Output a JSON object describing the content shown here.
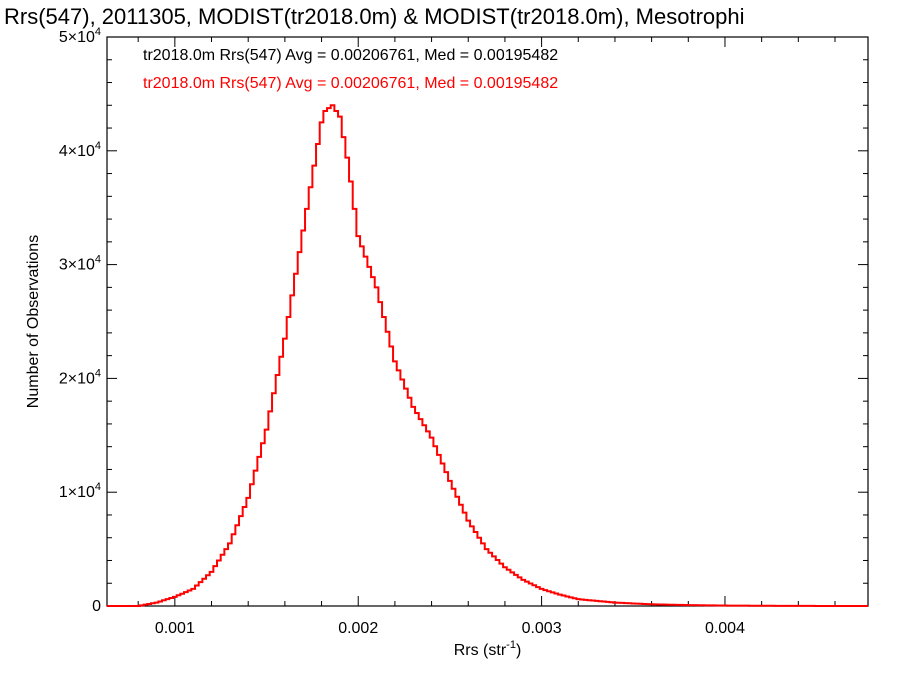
{
  "chart_data": {
    "type": "histogram",
    "title": "Rrs(547), 2011305, MODIST(tr2018.0m) & MODIST(tr2018.0m), Mesotrophi",
    "xlabel": {
      "base": "Rrs (str",
      "sup": "-1",
      "tail": ")"
    },
    "ylabel": "Number of Observations",
    "xlim": [
      0.00063,
      0.00478
    ],
    "ylim": [
      0,
      50000
    ],
    "x_ticks": [
      {
        "value": 0.001,
        "label": "0.001"
      },
      {
        "value": 0.002,
        "label": "0.002"
      },
      {
        "value": 0.003,
        "label": "0.003"
      },
      {
        "value": 0.004,
        "label": "0.004"
      }
    ],
    "y_ticks": [
      {
        "value": 0,
        "base": "0",
        "sup": ""
      },
      {
        "value": 10000,
        "base": "1×10",
        "sup": "4"
      },
      {
        "value": 20000,
        "base": "2×10",
        "sup": "4"
      },
      {
        "value": 30000,
        "base": "3×10",
        "sup": "4"
      },
      {
        "value": 40000,
        "base": "4×10",
        "sup": "4"
      },
      {
        "value": 50000,
        "base": "5×10",
        "sup": "4"
      }
    ],
    "annotations": [
      {
        "text": "tr2018.0m Rrs(547) Avg = 0.00206761, Med = 0.00195482",
        "color": "#000000"
      },
      {
        "text": "tr2018.0m Rrs(547) Avg = 0.00206761, Med = 0.00195482",
        "color": "#ff0000"
      }
    ],
    "series": [
      {
        "color": "#ff0000",
        "bin_width": 2e-05,
        "points": [
          [
            0.00064,
            0
          ],
          [
            0.0008,
            0
          ],
          [
            0.0009,
            300
          ],
          [
            0.001,
            800
          ],
          [
            0.0011,
            1500
          ],
          [
            0.0012,
            3000
          ],
          [
            0.0013,
            5500
          ],
          [
            0.0014,
            9500
          ],
          [
            0.0015,
            15500
          ],
          [
            0.0016,
            23500
          ],
          [
            0.0017,
            33000
          ],
          [
            0.0018,
            42500
          ],
          [
            0.00182,
            43500
          ],
          [
            0.00186,
            44000
          ],
          [
            0.0019,
            43000
          ],
          [
            0.00195,
            38500
          ],
          [
            0.002,
            32500
          ],
          [
            0.0021,
            28000
          ],
          [
            0.0022,
            21500
          ],
          [
            0.0023,
            17500
          ],
          [
            0.0024,
            14800
          ],
          [
            0.0025,
            11000
          ],
          [
            0.0026,
            7500
          ],
          [
            0.0027,
            5000
          ],
          [
            0.0028,
            3400
          ],
          [
            0.0029,
            2300
          ],
          [
            0.003,
            1500
          ],
          [
            0.0031,
            1000
          ],
          [
            0.0032,
            600
          ],
          [
            0.0034,
            300
          ],
          [
            0.0036,
            150
          ],
          [
            0.0038,
            80
          ],
          [
            0.004,
            40
          ],
          [
            0.0042,
            20
          ],
          [
            0.0045,
            5
          ],
          [
            0.00478,
            0
          ]
        ]
      }
    ]
  }
}
